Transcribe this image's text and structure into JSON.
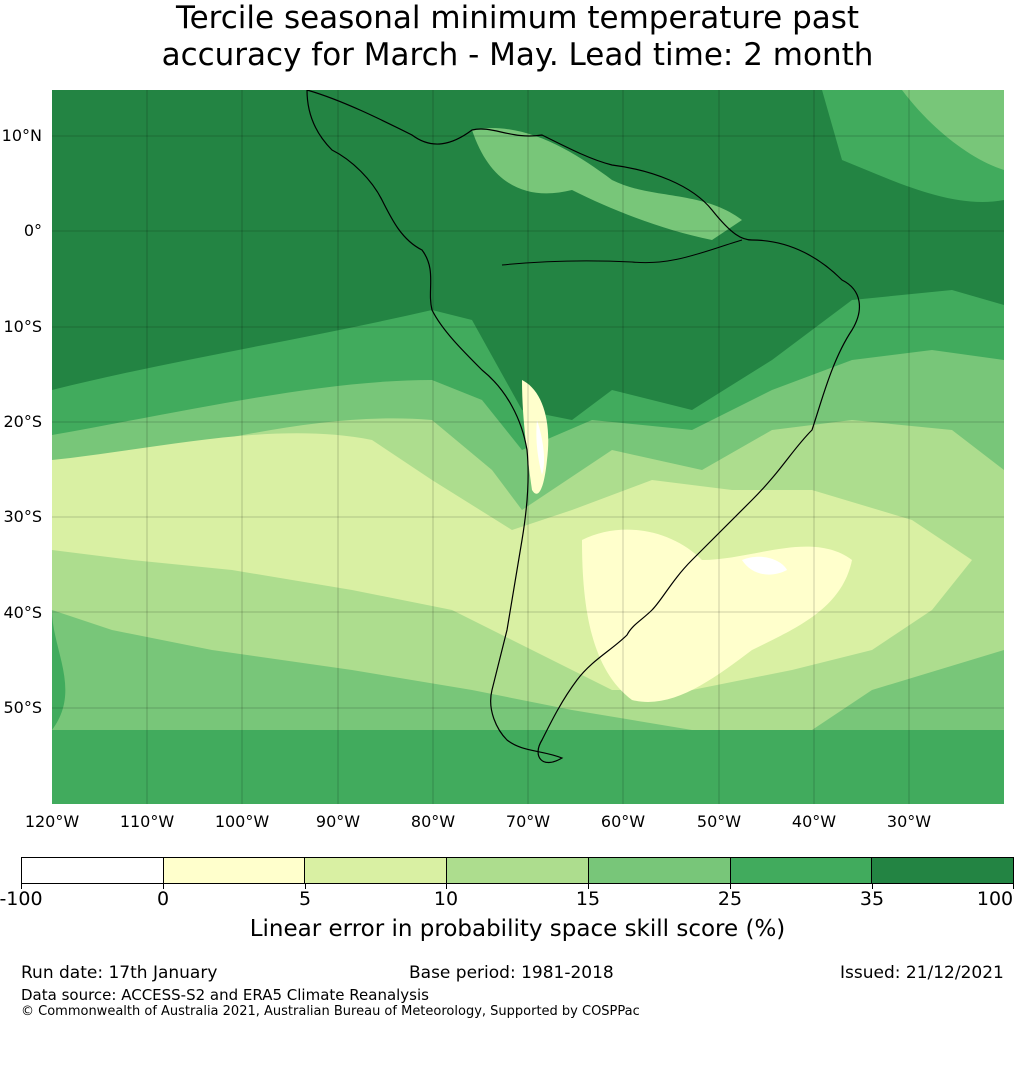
{
  "title": {
    "line1": "Tercile seasonal minimum temperature past",
    "line2": "accuracy for March - May. Lead time: 2 month"
  },
  "map": {
    "lat_labels": [
      "10°N",
      "0°",
      "10°S",
      "20°S",
      "30°S",
      "40°S",
      "50°S"
    ],
    "lon_labels": [
      "120°W",
      "110°W",
      "100°W",
      "90°W",
      "80°W",
      "70°W",
      "60°W",
      "50°W",
      "40°W",
      "30°W"
    ]
  },
  "colorbar": {
    "colors": [
      "#ffffff",
      "#ffffcc",
      "#d9f0a3",
      "#addd8e",
      "#78c679",
      "#41ab5d",
      "#238443"
    ],
    "ticks": [
      "-100",
      "0",
      "5",
      "10",
      "15",
      "25",
      "35",
      "100"
    ],
    "label": "Linear error in probability space skill score (%)"
  },
  "footer": {
    "run_date": "Run date: 17th January",
    "base_period": "Base period: 1981-2018",
    "issued": "Issued: 21/12/2021",
    "data_source": "Data source: ACCESS-S2 and ERA5 Climate Reanalysis",
    "copyright": "© Commonwealth of Australia 2021, Australian Bureau of Meteorology, Supported by COSPPac"
  }
}
